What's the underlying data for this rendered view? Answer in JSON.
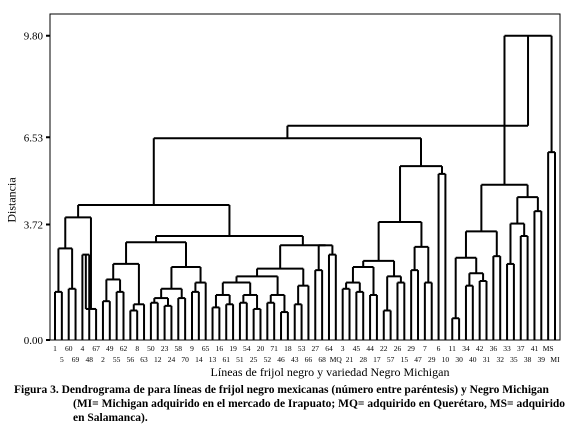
{
  "chart_data": {
    "type": "dendrogram",
    "ylabel": "Distancia",
    "xlabel": "Líneas de frijol negro y variedad Negro Michigan",
    "y_ticks": [
      0.0,
      3.72,
      6.53,
      9.8
    ],
    "y_tick_labels": [
      "0.00",
      "3.72",
      "6.53",
      "9.80"
    ],
    "ylim": [
      0,
      10.5
    ],
    "grid": false,
    "leaf_labels_top": [
      "1",
      "60",
      "4",
      "67",
      "49",
      "62",
      "8",
      "50",
      "23",
      "58",
      "9",
      "65",
      "16",
      "19",
      "54",
      "20",
      "71",
      "18",
      "53",
      "27",
      "64",
      "3",
      "45",
      "44",
      "22",
      "26",
      "29",
      "7",
      "6",
      "11",
      "34",
      "42",
      "36",
      "33",
      "37",
      "41",
      "MS"
    ],
    "leaf_labels_bottom": [
      "5",
      "69",
      "48",
      "2",
      "55",
      "56",
      "63",
      "12",
      "24",
      "70",
      "14",
      "13",
      "61",
      "51",
      "25",
      "52",
      "46",
      "43",
      "66",
      "68",
      "MQ",
      "21",
      "28",
      "17",
      "57",
      "15",
      "47",
      "29",
      "10",
      "30",
      "40",
      "31",
      "32",
      "35",
      "38",
      "39",
      "MI"
    ],
    "leaves": [
      "1",
      "5",
      "60",
      "69",
      "4",
      "48",
      "67",
      "49",
      "2",
      "62",
      "55",
      "8",
      "56",
      "63",
      "50",
      "12",
      "23",
      "24",
      "58",
      "70",
      "9",
      "14",
      "65",
      "13",
      "16",
      "61",
      "19",
      "51",
      "54",
      "25",
      "20",
      "52",
      "71",
      "46",
      "18",
      "43",
      "53",
      "66",
      "27",
      "68",
      "64",
      "MQ",
      "3",
      "21",
      "45",
      "28",
      "44",
      "17",
      "22",
      "57",
      "26",
      "15",
      "29a",
      "47",
      "7",
      "29b",
      "6",
      "10",
      "11",
      "30",
      "34",
      "40",
      "42",
      "31",
      "36",
      "32",
      "33",
      "35",
      "37",
      "38",
      "41",
      "39",
      "MS",
      "MI"
    ],
    "merges": [
      [
        "1",
        "5",
        1.55
      ],
      [
        "60",
        "69",
        1.65
      ],
      [
        "A1",
        "A2",
        2.95
      ],
      [
        "4",
        "48",
        2.75
      ],
      [
        "67",
        "67",
        0
      ],
      [
        "B1",
        "67",
        1.0
      ],
      [
        "A3",
        "B2",
        3.95
      ],
      [
        "49",
        "2",
        1.25
      ],
      [
        "62",
        "55",
        1.55
      ],
      [
        "C1",
        "C2",
        1.95
      ],
      [
        "8",
        "56",
        0.95
      ],
      [
        "C4",
        "63",
        1.15
      ],
      [
        "C3",
        "C5",
        2.45
      ],
      [
        "50",
        "12",
        1.2
      ],
      [
        "23",
        "24",
        1.1
      ],
      [
        "D1",
        "D2",
        1.35
      ],
      [
        "58",
        "70",
        1.35
      ],
      [
        "D3",
        "D4",
        1.65
      ],
      [
        "9",
        "14",
        1.55
      ],
      [
        "D6",
        "65",
        1.85
      ],
      [
        "D5",
        "D7",
        2.35
      ],
      [
        "C6",
        "D8",
        3.15
      ],
      [
        "13",
        "16",
        1.05
      ],
      [
        "61",
        "19",
        1.15
      ],
      [
        "E1",
        "E2",
        1.45
      ],
      [
        "51",
        "54",
        1.2
      ],
      [
        "25",
        "20",
        1.0
      ],
      [
        "E4",
        "E5",
        1.45
      ],
      [
        "E3",
        "E6",
        1.85
      ],
      [
        "52",
        "71",
        1.2
      ],
      [
        "46",
        "18",
        0.9
      ],
      [
        "E8",
        "E9",
        1.45
      ],
      [
        "E7",
        "E10",
        2.05
      ],
      [
        "43",
        "53",
        1.15
      ],
      [
        "66",
        "E12",
        1.75
      ],
      [
        "E11",
        "E13",
        2.3
      ],
      [
        "27",
        "68",
        2.25
      ],
      [
        "64",
        "MQ",
        2.75
      ],
      [
        "F1",
        "F2",
        3.05
      ],
      [
        "E14",
        "F3",
        2.95
      ],
      [
        "CD",
        "E15",
        3.25
      ],
      [
        "A4",
        "G1",
        4.35
      ],
      [
        "3",
        "21",
        1.65
      ],
      [
        "45",
        "28",
        1.55
      ],
      [
        "H1",
        "H2",
        1.85
      ],
      [
        "44",
        "17",
        1.45
      ],
      [
        "H3",
        "H4",
        2.35
      ],
      [
        "22",
        "57",
        0.95
      ],
      [
        "26",
        "15",
        1.85
      ],
      [
        "H6",
        "H7",
        2.05
      ],
      [
        "H5",
        "H8",
        2.55
      ],
      [
        "29a",
        "47",
        2.25
      ],
      [
        "7",
        "29b",
        1.85
      ],
      [
        "H10",
        "H11",
        3.0
      ],
      [
        "H9",
        "H12",
        3.8
      ],
      [
        "6",
        "10",
        5.35
      ],
      [
        "I1",
        "I2",
        5.6
      ],
      [
        "left",
        "I3",
        6.5
      ],
      [
        "11",
        "30",
        0.7
      ],
      [
        "34",
        "40",
        1.75
      ],
      [
        "42",
        "31",
        1.9
      ],
      [
        "J2",
        "J3",
        2.15
      ],
      [
        "J4",
        "J5",
        2.65
      ],
      [
        "36",
        "32",
        2.7
      ],
      [
        "J6",
        "J7",
        3.5
      ],
      [
        "33",
        "35",
        2.45
      ],
      [
        "37",
        "38",
        3.35
      ],
      [
        "J9",
        "J10",
        3.75
      ],
      [
        "41",
        "39",
        4.15
      ],
      [
        "J11",
        "J12",
        4.6
      ],
      [
        "J8",
        "J13",
        5.0
      ],
      [
        "MS",
        "MI",
        6.05
      ],
      [
        "J14",
        "J15",
        9.8
      ],
      [
        "K1",
        "K2",
        6.9
      ],
      [
        "root",
        "root",
        9.8
      ]
    ]
  },
  "caption": {
    "lead": "Figura 3. Dendrograma de para líneas de frijol negro mexicanas (número entre paréntesis) y Negro Michigan",
    "rest": "(MI= Michigan adquirido en el mercado de Irapuato; MQ= adquirido en Querétaro, MS= adquirido en Salamanca)."
  }
}
